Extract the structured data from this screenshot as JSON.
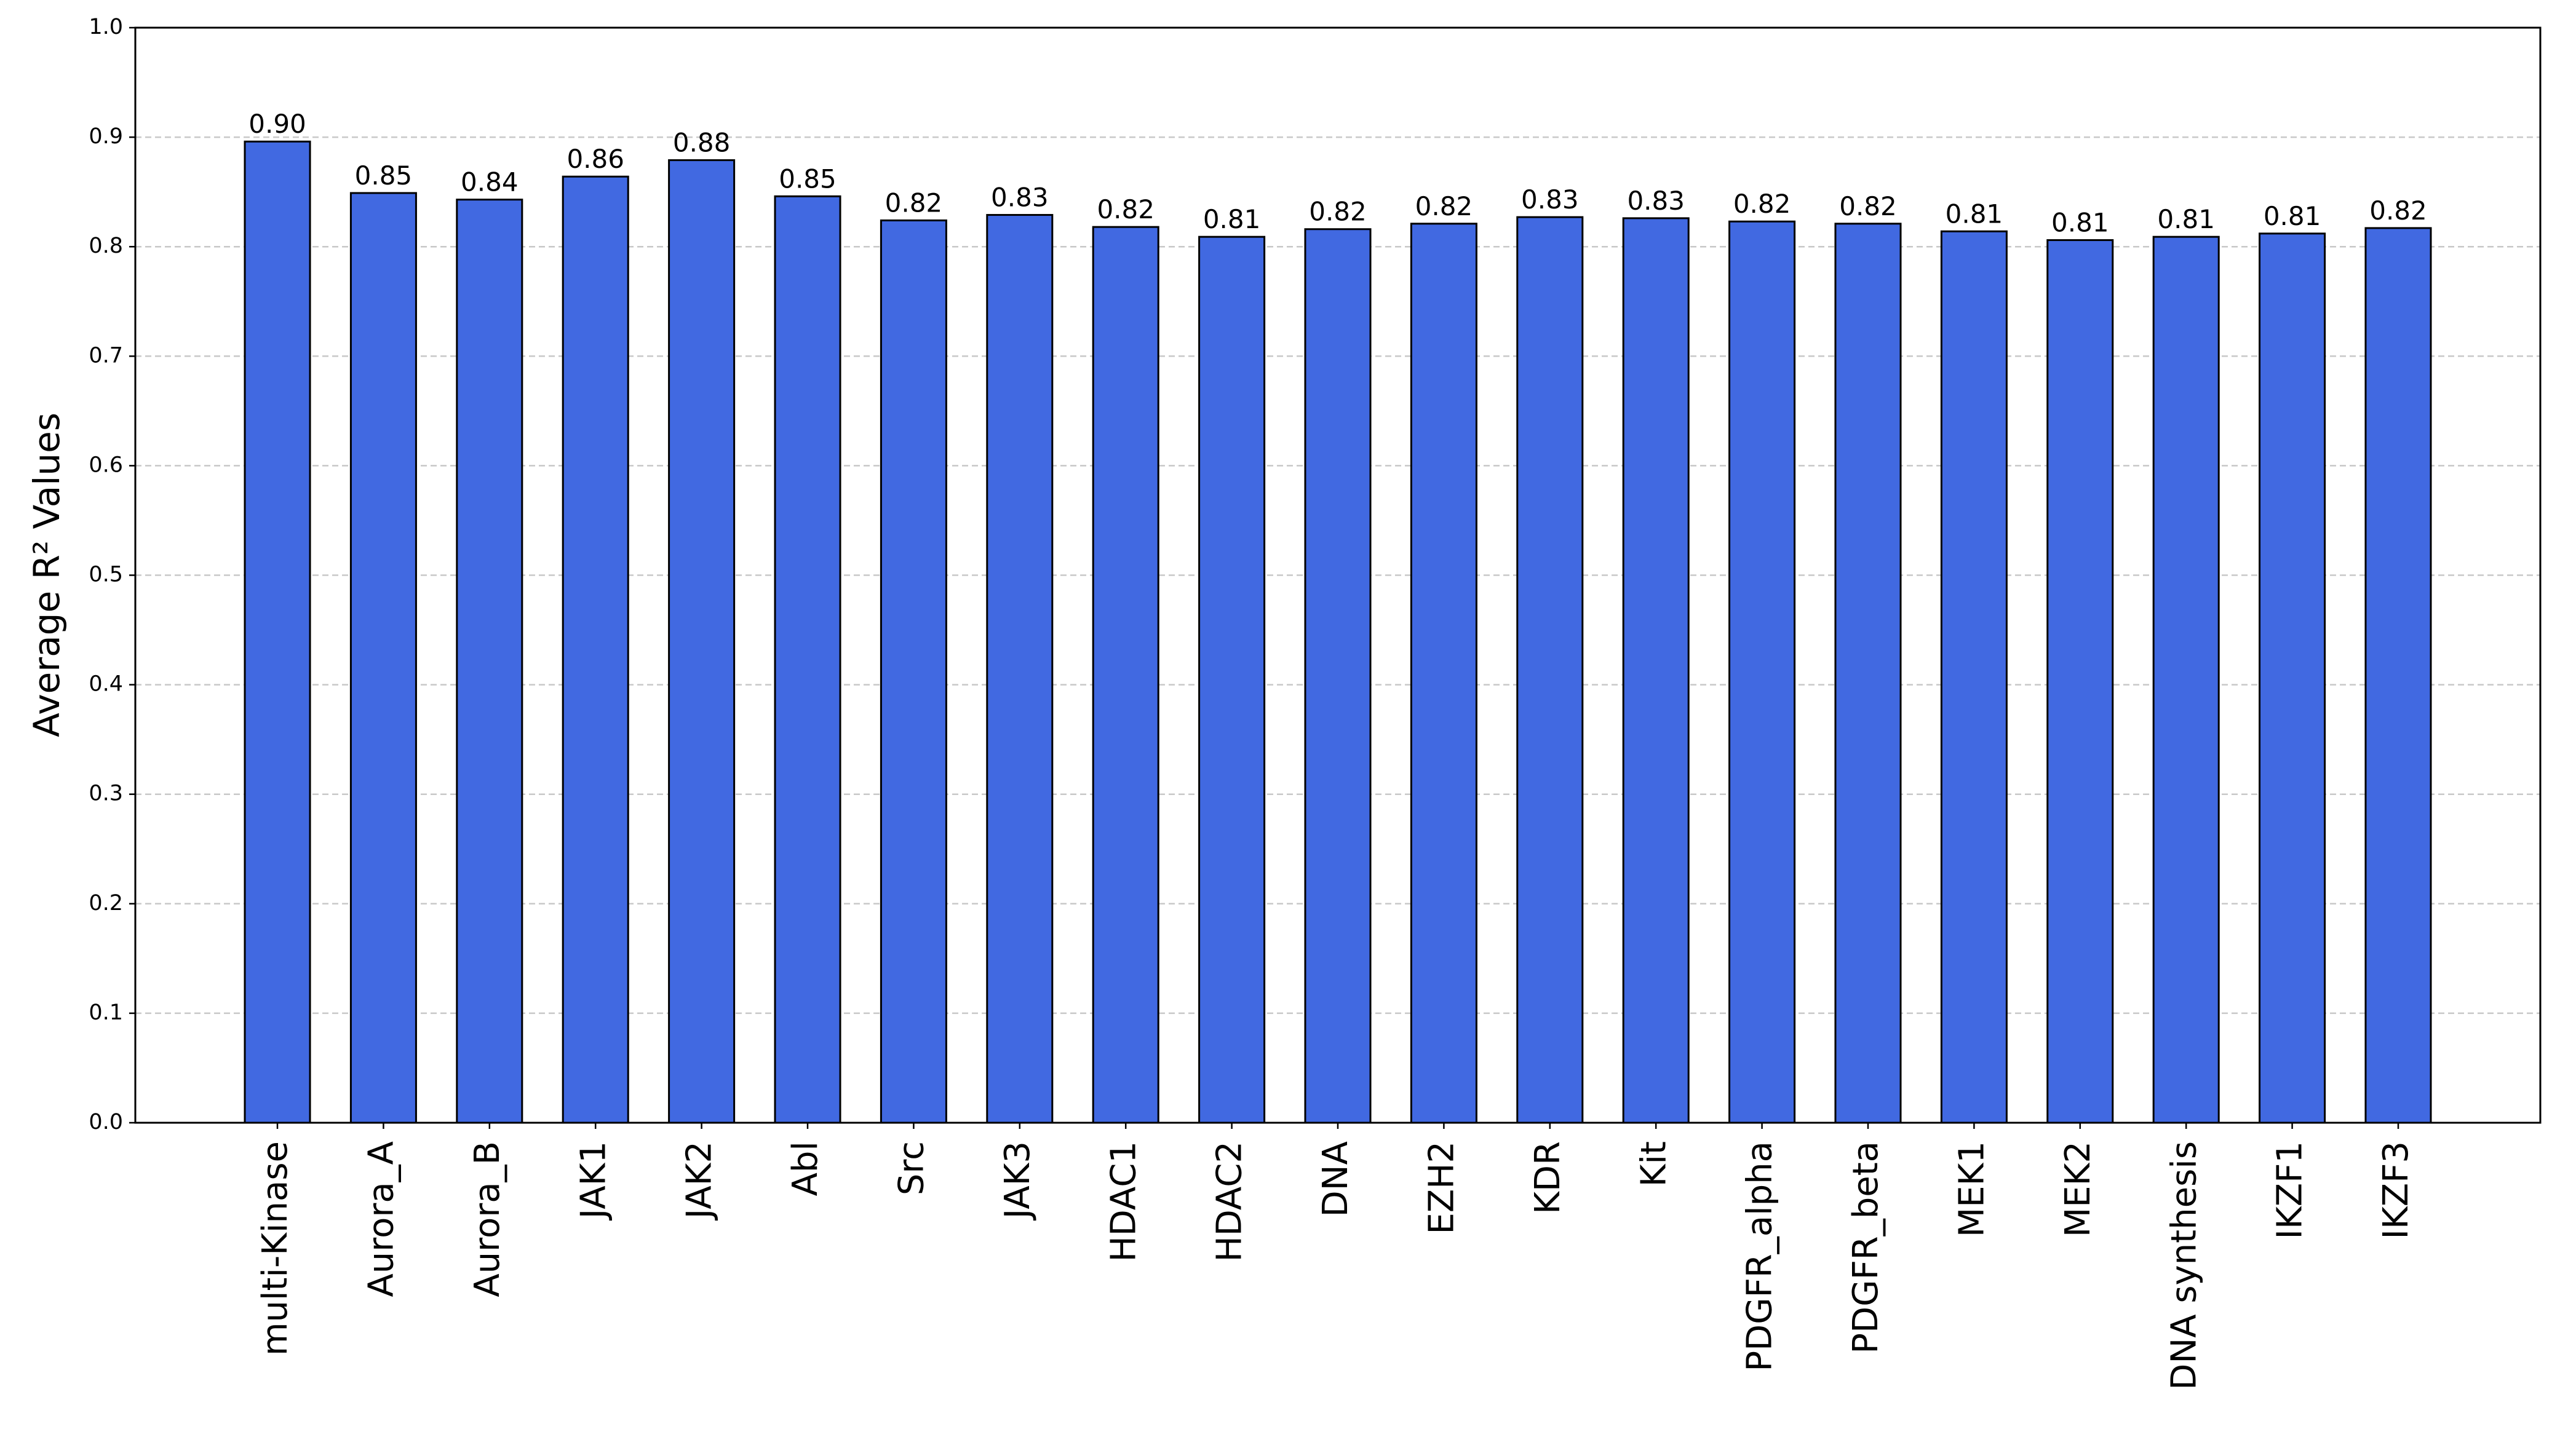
{
  "chart_data": {
    "type": "bar",
    "y_label": "Average R² Values",
    "categories": [
      "multi-Kinase",
      "Aurora_A",
      "Aurora_B",
      "JAK1",
      "JAK2",
      "Abl",
      "Src",
      "JAK3",
      "HDAC1",
      "HDAC2",
      "DNA",
      "EZH2",
      "KDR",
      "Kit",
      "PDGFR_alpha",
      "PDGFR_beta",
      "MEK1",
      "MEK2",
      "DNA synthesis",
      "IKZF1",
      "IKZF3"
    ],
    "values": [
      0.896,
      0.849,
      0.843,
      0.864,
      0.879,
      0.846,
      0.824,
      0.829,
      0.818,
      0.809,
      0.816,
      0.821,
      0.827,
      0.826,
      0.823,
      0.821,
      0.814,
      0.806,
      0.809,
      0.812,
      0.817
    ],
    "value_labels": [
      "0.90",
      "0.85",
      "0.84",
      "0.86",
      "0.88",
      "0.85",
      "0.82",
      "0.83",
      "0.82",
      "0.81",
      "0.82",
      "0.82",
      "0.83",
      "0.83",
      "0.82",
      "0.82",
      "0.81",
      "0.81",
      "0.81",
      "0.81",
      "0.82"
    ],
    "color": "#4169e1",
    "ylim": [
      0,
      1
    ],
    "yticks": [
      {
        "value": 0,
        "label": "0.0"
      },
      0.1,
      0.2,
      0.3,
      0.4,
      0.5,
      0.6,
      0.7,
      0.8,
      0.9,
      {
        "value": 1,
        "label": "1.0"
      }
    ],
    "grid": true
  }
}
